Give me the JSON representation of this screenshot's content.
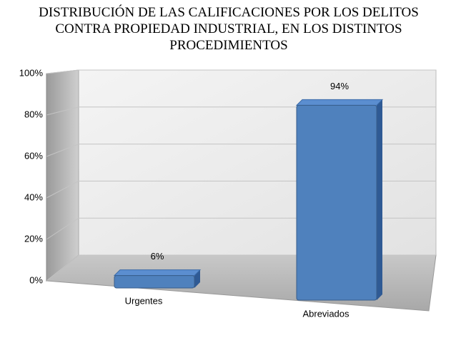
{
  "chart_data": {
    "type": "bar",
    "title": "DISTRIBUCIÓN DE LAS CALIFICACIONES POR LOS DELITOS CONTRA PROPIEDAD INDUSTRIAL, EN LOS DISTINTOS PROCEDIMIENTOS",
    "categories": [
      "Urgentes",
      "Abreviados"
    ],
    "values": [
      6,
      94
    ],
    "value_labels": [
      "6%",
      "94%"
    ],
    "color": "#4f81bd",
    "ylim": [
      0,
      100
    ],
    "yticks": [
      {
        "value": 0,
        "label": "0%"
      },
      {
        "value": 20,
        "label": "20%"
      },
      {
        "value": 40,
        "label": "40%"
      },
      {
        "value": 60,
        "label": "60%"
      },
      {
        "value": 80,
        "label": "80%"
      },
      {
        "value": 100,
        "label": "100%"
      }
    ],
    "grid": true
  }
}
